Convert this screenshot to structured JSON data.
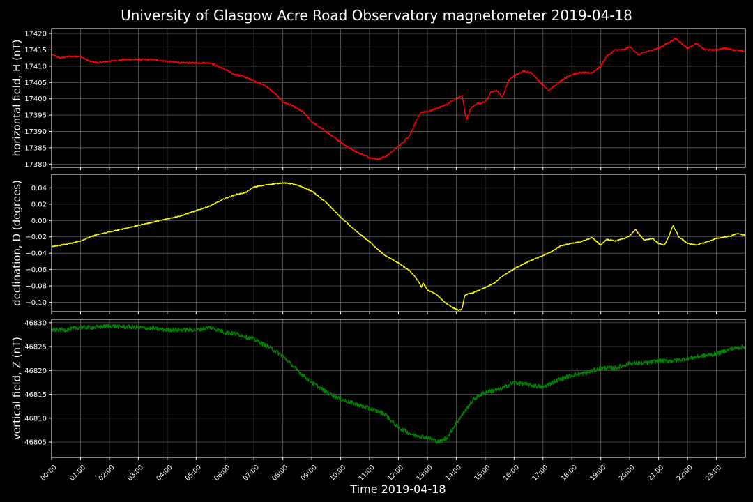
{
  "chart_data": [
    {
      "type": "line",
      "title": "University of Glasgow Acre Road Observatory magnetometer 2019-04-18",
      "xlabel": "Time 2019-04-18",
      "ylabel": "horizontal field, H (nT)",
      "xlim": [
        0,
        24
      ],
      "ylim": [
        17379,
        17421.5
      ],
      "yticks": [
        17380,
        17385,
        17390,
        17395,
        17400,
        17405,
        17410,
        17415,
        17420
      ],
      "ytick_labels": [
        "17380",
        "17385",
        "17390",
        "17395",
        "17400",
        "17405",
        "17410",
        "17415",
        "17420"
      ],
      "grid": true,
      "series": [
        {
          "color": "#ff0000",
          "noise": 0.5,
          "x": [
            0.0,
            0.3,
            0.6,
            1.0,
            1.3,
            1.6,
            2.0,
            2.5,
            3.0,
            3.5,
            4.0,
            4.5,
            5.0,
            5.5,
            6.0,
            6.3,
            6.6,
            7.0,
            7.4,
            7.8,
            8.0,
            8.3,
            8.7,
            9.0,
            9.4,
            9.8,
            10.2,
            10.6,
            11.0,
            11.3,
            11.6,
            12.0,
            12.2,
            12.4,
            12.6,
            12.8,
            13.0,
            13.3,
            13.6,
            14.0,
            14.2,
            14.35,
            14.5,
            14.7,
            15.0,
            15.2,
            15.4,
            15.6,
            15.8,
            16.0,
            16.3,
            16.6,
            16.9,
            17.2,
            17.4,
            17.7,
            18.0,
            18.3,
            18.7,
            19.0,
            19.2,
            19.5,
            19.8,
            20.0,
            20.3,
            20.6,
            21.0,
            21.3,
            21.6,
            21.8,
            22.0,
            22.3,
            22.6,
            23.0,
            23.3,
            23.6,
            24.0
          ],
          "y": [
            17413.5,
            17412.5,
            17413,
            17413,
            17411.5,
            17411,
            17411.5,
            17412,
            17412,
            17412,
            17411.5,
            17411,
            17411,
            17411,
            17409,
            17407.5,
            17407,
            17405.5,
            17404,
            17401,
            17399,
            17398,
            17396,
            17393,
            17390.5,
            17388,
            17385.5,
            17383.5,
            17382,
            17381.5,
            17382.5,
            17385.5,
            17387,
            17389,
            17393,
            17396,
            17396,
            17397,
            17398,
            17400,
            17401,
            17393.5,
            17397,
            17398.5,
            17399,
            17402,
            17402.5,
            17400.5,
            17405.5,
            17407,
            17408.5,
            17408,
            17405,
            17402.5,
            17404,
            17406,
            17407.5,
            17408,
            17408,
            17410,
            17413,
            17415,
            17415,
            17416,
            17413.5,
            17414.5,
            17415.5,
            17417,
            17418.5,
            17417,
            17415.5,
            17417,
            17415,
            17415,
            17415.5,
            17415,
            17414.5
          ]
        }
      ]
    },
    {
      "type": "line",
      "ylabel": "declination, D (degrees)",
      "xlim": [
        0,
        24
      ],
      "ylim": [
        -0.1115,
        0.0565
      ],
      "yticks": [
        -0.1,
        -0.08,
        -0.06,
        -0.04,
        -0.02,
        0.0,
        0.02,
        0.04
      ],
      "ytick_labels": [
        "−0.10",
        "−0.08",
        "−0.06",
        "−0.04",
        "−0.02",
        "0.00",
        "0.02",
        "0.04"
      ],
      "grid": true,
      "series": [
        {
          "color": "#ffff00",
          "noise": 0.0012,
          "x": [
            0.0,
            0.5,
            1.0,
            1.5,
            2.0,
            2.5,
            3.0,
            3.5,
            4.0,
            4.5,
            5.0,
            5.5,
            6.0,
            6.4,
            6.7,
            7.0,
            7.5,
            8.0,
            8.3,
            8.6,
            9.0,
            9.5,
            10.0,
            10.5,
            11.0,
            11.5,
            12.0,
            12.4,
            12.6,
            12.7,
            12.8,
            12.85,
            13.0,
            13.3,
            13.6,
            13.9,
            14.1,
            14.2,
            14.3,
            14.6,
            15.0,
            15.3,
            15.6,
            16.0,
            16.5,
            17.0,
            17.3,
            17.6,
            18.0,
            18.3,
            18.7,
            19.0,
            19.2,
            19.5,
            19.8,
            20.0,
            20.2,
            20.3,
            20.5,
            20.8,
            21.0,
            21.2,
            21.35,
            21.5,
            21.7,
            22.0,
            22.3,
            22.6,
            23.0,
            23.3,
            23.5,
            23.7,
            24.0
          ],
          "y": [
            -0.032,
            -0.029,
            -0.025,
            -0.018,
            -0.014,
            -0.01,
            -0.006,
            -0.002,
            0.002,
            0.006,
            0.012,
            0.018,
            0.027,
            0.032,
            0.034,
            0.041,
            0.044,
            0.046,
            0.045,
            0.042,
            0.036,
            0.022,
            0.004,
            -0.012,
            -0.026,
            -0.042,
            -0.052,
            -0.062,
            -0.07,
            -0.075,
            -0.082,
            -0.076,
            -0.085,
            -0.09,
            -0.1,
            -0.107,
            -0.11,
            -0.108,
            -0.091,
            -0.088,
            -0.082,
            -0.077,
            -0.068,
            -0.059,
            -0.05,
            -0.043,
            -0.038,
            -0.031,
            -0.028,
            -0.026,
            -0.021,
            -0.03,
            -0.023,
            -0.025,
            -0.022,
            -0.019,
            -0.011,
            -0.016,
            -0.024,
            -0.022,
            -0.028,
            -0.03,
            -0.02,
            -0.006,
            -0.02,
            -0.028,
            -0.03,
            -0.027,
            -0.022,
            -0.02,
            -0.019,
            -0.016,
            -0.018
          ]
        }
      ]
    },
    {
      "type": "line",
      "ylabel": "vertical field, Z (nT)",
      "xlabel": "Time 2019-04-18",
      "xlim": [
        0,
        24
      ],
      "ylim": [
        46801.8,
        46830.7
      ],
      "yticks": [
        46805,
        46810,
        46815,
        46820,
        46825,
        46830
      ],
      "ytick_labels": [
        "46805",
        "46810",
        "46815",
        "46820",
        "46825",
        "46830"
      ],
      "grid": true,
      "series": [
        {
          "color": "#008000",
          "noise": 0.9,
          "x": [
            0.0,
            0.5,
            1.0,
            1.5,
            2.0,
            3.0,
            4.0,
            5.0,
            5.5,
            6.0,
            6.5,
            7.0,
            7.5,
            8.0,
            8.5,
            9.0,
            9.5,
            10.0,
            10.5,
            11.0,
            11.5,
            12.0,
            12.5,
            13.0,
            13.4,
            13.7,
            14.0,
            14.3,
            14.6,
            15.0,
            15.5,
            16.0,
            16.5,
            17.0,
            17.5,
            18.0,
            18.5,
            19.0,
            19.5,
            20.0,
            20.5,
            21.0,
            21.5,
            22.0,
            22.5,
            23.0,
            23.5,
            24.0
          ],
          "y": [
            46828.5,
            46828.5,
            46829,
            46829,
            46829.3,
            46829,
            46828.5,
            46828.5,
            46829,
            46828,
            46827.5,
            46826.5,
            46825,
            46823,
            46820,
            46817.5,
            46815.5,
            46814,
            46813,
            46812,
            46811,
            46808,
            46806.5,
            46806,
            46805,
            46806,
            46809,
            46811.5,
            46814,
            46815.5,
            46816,
            46817.5,
            46817,
            46816.5,
            46818,
            46819,
            46819.5,
            46820.5,
            46820.5,
            46821.5,
            46821.5,
            46822,
            46822,
            46822.5,
            46823,
            46823.5,
            46824.5,
            46825
          ]
        }
      ]
    }
  ],
  "x_tick_labels": [
    "00:00",
    "01:00",
    "02:00",
    "03:00",
    "04:00",
    "05:00",
    "06:00",
    "07:00",
    "08:00",
    "09:00",
    "10:00",
    "11:00",
    "12:00",
    "13:00",
    "14:00",
    "15:00",
    "16:00",
    "17:00",
    "18:00",
    "19:00",
    "20:00",
    "21:00",
    "22:00",
    "23:00"
  ]
}
